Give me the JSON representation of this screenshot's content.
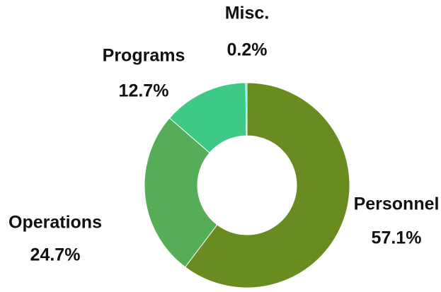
{
  "chart_data": {
    "type": "donut",
    "categories": [
      "Personnel",
      "Operations",
      "Programs",
      "Misc."
    ],
    "values": [
      57.1,
      24.7,
      12.7,
      0.2
    ],
    "value_labels": [
      "57.1%",
      "24.7%",
      "12.7%",
      "0.2%"
    ],
    "colors": [
      "#688c1f",
      "#55ad58",
      "#3ec986",
      "#0ce5c8"
    ]
  }
}
